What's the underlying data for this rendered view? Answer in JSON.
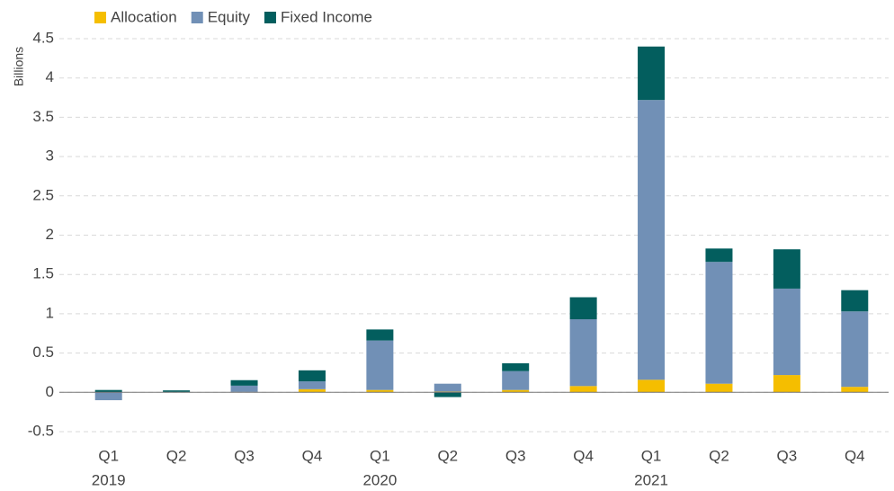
{
  "chart_data": {
    "type": "stacked_bar",
    "y_axis_label": "Billions",
    "categories": [
      [
        "Q1",
        "2019"
      ],
      [
        "Q2",
        null
      ],
      [
        "Q3",
        null
      ],
      [
        "Q4",
        null
      ],
      [
        "Q1",
        "2020"
      ],
      [
        "Q2",
        null
      ],
      [
        "Q3",
        null
      ],
      [
        "Q4",
        null
      ],
      [
        "Q1",
        "2021"
      ],
      [
        "Q2",
        null
      ],
      [
        "Q3",
        null
      ],
      [
        "Q4",
        null
      ]
    ],
    "series": [
      {
        "name": "Allocation",
        "color": "#f5be00",
        "values": [
          0,
          0,
          0.005,
          0.04,
          0.03,
          0.01,
          0.03,
          0.08,
          0.16,
          0.11,
          0.22,
          0.07
        ]
      },
      {
        "name": "Equity",
        "color": "#7190b6",
        "values": [
          -0.1,
          0.005,
          0.08,
          0.1,
          0.63,
          0.1,
          0.24,
          0.85,
          3.56,
          1.55,
          1.1,
          0.96
        ]
      },
      {
        "name": "Fixed Income",
        "color": "#035e5e",
        "values": [
          0.03,
          0.02,
          0.07,
          0.14,
          0.14,
          -0.06,
          0.1,
          0.28,
          0.68,
          0.17,
          0.5,
          0.27
        ]
      }
    ],
    "ylim": [
      -0.5,
      4.5
    ],
    "yticks": [
      -0.5,
      0,
      0.5,
      1,
      1.5,
      2,
      2.5,
      3,
      3.5,
      4,
      4.5
    ],
    "grid": true,
    "legend": "top-left"
  }
}
